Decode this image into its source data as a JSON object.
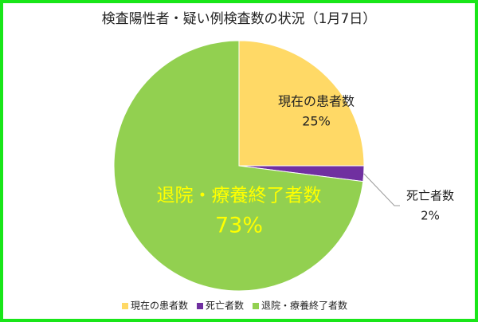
{
  "chart_data": {
    "type": "pie",
    "title": "検査陽性者・疑い例検査数の状況（1月7日）",
    "categories": [
      "現在の患者数",
      "死亡者数",
      "退院・療養終了者数"
    ],
    "values": [
      25,
      2,
      73
    ],
    "value_labels": [
      "25%",
      "2%",
      "73%"
    ],
    "colors": [
      "#FFD966",
      "#7030A0",
      "#92D050"
    ],
    "legend": "bottom"
  }
}
